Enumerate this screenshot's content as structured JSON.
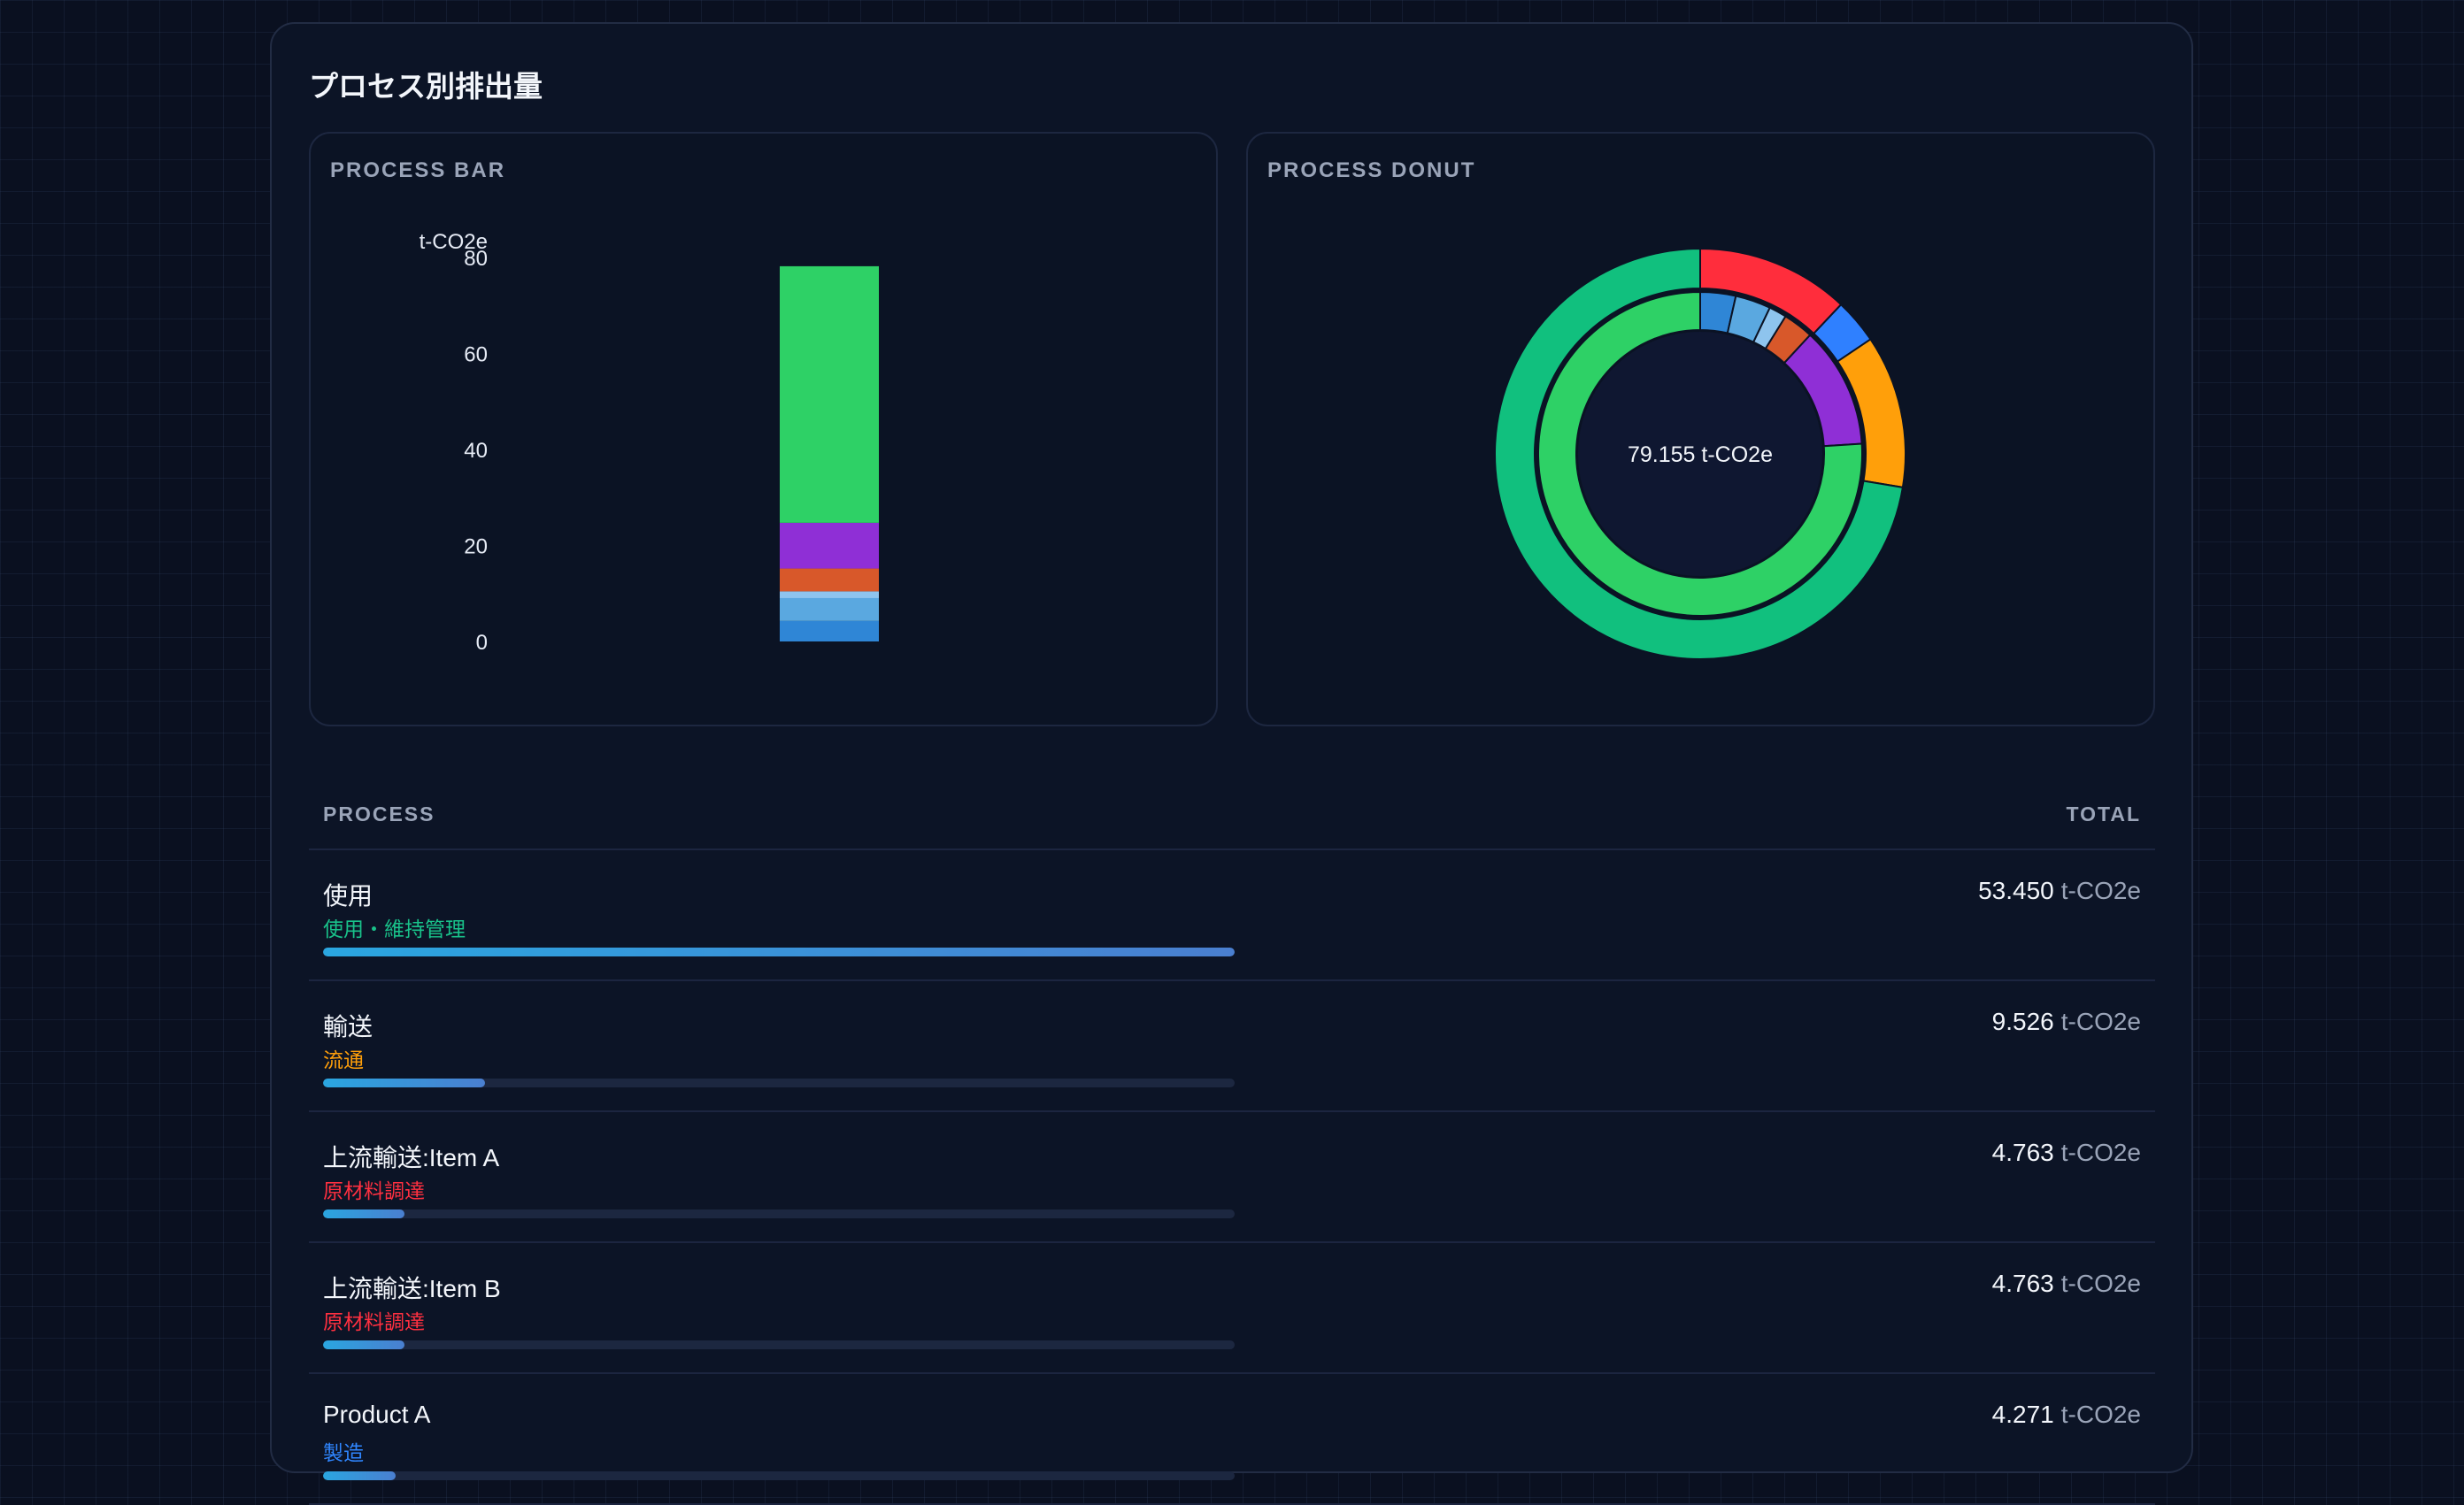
{
  "card": {
    "title": "プロセス別排出量"
  },
  "bar_panel": {
    "label": "PROCESS BAR",
    "unit": "t-CO2e"
  },
  "donut_panel": {
    "label": "PROCESS DONUT",
    "center": "79.155 t-CO2e"
  },
  "table": {
    "col_process": "PROCESS",
    "col_total": "TOTAL",
    "unit": "t-CO2e",
    "rows": [
      {
        "name": "使用",
        "category": "使用・維持管理",
        "category_color": "#19c28a",
        "total": "53.450",
        "share": 1.0
      },
      {
        "name": "輸送",
        "category": "流通",
        "category_color": "#ff9f0a",
        "total": "9.526",
        "share": 0.178
      },
      {
        "name": "上流輸送:Item A",
        "category": "原材料調達",
        "category_color": "#ff3040",
        "total": "4.763",
        "share": 0.089
      },
      {
        "name": "上流輸送:Item B",
        "category": "原材料調達",
        "category_color": "#ff3040",
        "total": "4.763",
        "share": 0.089
      },
      {
        "name": "Product A",
        "category": "製造",
        "category_color": "#2f86ff",
        "total": "4.271",
        "share": 0.08
      }
    ]
  },
  "chart_data": [
    {
      "type": "bar",
      "stacked": true,
      "ylabel": "t-CO2e",
      "ylim": [
        0,
        80
      ],
      "yticks": [
        0,
        20,
        40,
        60,
        80
      ],
      "grid": false,
      "series": [
        {
          "value": 4.271,
          "color": "#2f86d6"
        },
        {
          "value": 4.763,
          "color": "#5aa8e0"
        },
        {
          "value": 1.4,
          "color": "#8ec4ee"
        },
        {
          "value": 4.763,
          "color": "#d8582a"
        },
        {
          "value": 9.526,
          "color": "#8f2fd6"
        },
        {
          "value": 53.45,
          "color": "#2ed166"
        }
      ]
    },
    {
      "type": "pie",
      "donut": true,
      "total": 79.155,
      "outer_ring": [
        {
          "value": 9.526,
          "color": "#ff2d3c"
        },
        {
          "value": 2.8,
          "color": "#2f80ff"
        },
        {
          "value": 9.526,
          "color": "#ff9f0a"
        },
        {
          "value": 57.303,
          "color": "#11c07e"
        }
      ],
      "inner_ring": [
        {
          "value": 2.8,
          "color": "#2f86d6"
        },
        {
          "value": 2.8,
          "color": "#5aa8e0"
        },
        {
          "value": 1.4,
          "color": "#8ec4ee"
        },
        {
          "value": 2.4,
          "color": "#d8582a"
        },
        {
          "value": 9.6,
          "color": "#8f2fd6"
        },
        {
          "value": 60.155,
          "color": "#2ed166"
        }
      ]
    }
  ]
}
